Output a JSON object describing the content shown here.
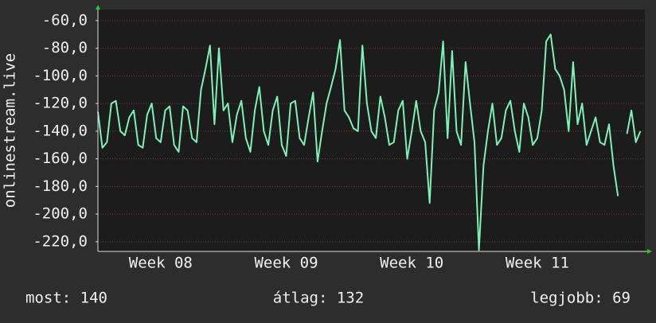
{
  "chart_data": {
    "type": "line",
    "y_label": "onlinestream.live",
    "xlim": [
      0,
      30.5
    ],
    "xticks": [
      {
        "value": 3.5,
        "label": "Week 08"
      },
      {
        "value": 10.5,
        "label": "Week 09"
      },
      {
        "value": 17.5,
        "label": "Week 10"
      },
      {
        "value": 24.5,
        "label": "Week 11"
      }
    ],
    "ylim": [
      -227,
      -52
    ],
    "yticks": [
      {
        "value": -60,
        "label": "-60,0"
      },
      {
        "value": -80,
        "label": "-80,0"
      },
      {
        "value": -100,
        "label": "-100,0"
      },
      {
        "value": -120,
        "label": "-120,0"
      },
      {
        "value": -140,
        "label": "-140,0"
      },
      {
        "value": -160,
        "label": "-160,0"
      },
      {
        "value": -180,
        "label": "-180,0"
      },
      {
        "value": -200,
        "label": "-200,0"
      },
      {
        "value": -220,
        "label": "-220,0"
      }
    ],
    "grid": true,
    "x": [
      0,
      0.25,
      0.5,
      0.75,
      1,
      1.25,
      1.5,
      1.75,
      2,
      2.25,
      2.5,
      2.75,
      3,
      3.25,
      3.5,
      3.75,
      4,
      4.25,
      4.5,
      4.75,
      5,
      5.25,
      5.5,
      5.75,
      6,
      6.25,
      6.5,
      6.75,
      7,
      7.25,
      7.5,
      7.75,
      8,
      8.25,
      8.5,
      8.75,
      9,
      9.25,
      9.5,
      9.75,
      10,
      10.25,
      10.5,
      10.75,
      11,
      11.25,
      11.5,
      11.75,
      12,
      12.25,
      12.5,
      12.75,
      13,
      13.25,
      13.5,
      13.75,
      14,
      14.25,
      14.5,
      14.75,
      15,
      15.25,
      15.5,
      15.75,
      16,
      16.25,
      16.5,
      16.75,
      17,
      17.25,
      17.5,
      17.75,
      18,
      18.25,
      18.5,
      18.75,
      19,
      19.25,
      19.5,
      19.75,
      20,
      20.25,
      20.5,
      20.75,
      21,
      21.25,
      21.5,
      21.75,
      22,
      22.25,
      22.5,
      22.75,
      23,
      23.25,
      23.5,
      23.75,
      24,
      24.25,
      24.5,
      24.75,
      25,
      25.25,
      25.5,
      25.75,
      26,
      26.25,
      26.5,
      26.75,
      27,
      27.25,
      27.5,
      27.75,
      28,
      28.25,
      28.5,
      28.75,
      29,
      29.25,
      29.5,
      29.75,
      30,
      30.25
    ],
    "series": [
      {
        "name": "onlinestream.live",
        "color": "#7df2b6",
        "values": [
          -126,
          -152,
          -148,
          -120,
          -118,
          -140,
          -143,
          -130,
          -125,
          -150,
          -152,
          -128,
          -120,
          -145,
          -148,
          -125,
          -122,
          -150,
          -155,
          -122,
          -125,
          -145,
          -148,
          -110,
          -95,
          -78,
          -135,
          -80,
          -125,
          -120,
          -148,
          -128,
          -118,
          -145,
          -155,
          -125,
          -108,
          -140,
          -150,
          -125,
          -115,
          -150,
          -158,
          -120,
          -118,
          -145,
          -150,
          -130,
          -112,
          -162,
          -140,
          -120,
          -108,
          -95,
          -74,
          -125,
          -130,
          -138,
          -140,
          -78,
          -120,
          -140,
          -145,
          -115,
          -130,
          -150,
          -148,
          -125,
          -118,
          -160,
          -140,
          -118,
          -140,
          -148,
          -192,
          -125,
          -112,
          -75,
          -145,
          -82,
          -140,
          -150,
          -90,
          -120,
          -148,
          -226,
          -165,
          -140,
          -120,
          -150,
          -145,
          -125,
          -118,
          -140,
          -155,
          -120,
          -130,
          -150,
          -145,
          -125,
          -75,
          -70,
          -95,
          -100,
          -110,
          -140,
          -90,
          -135,
          -120,
          -150,
          -140,
          -130,
          -148,
          -150,
          -135,
          -165,
          -187,
          null,
          -142,
          -125,
          -148,
          -140
        ]
      }
    ],
    "stats": [
      "most: 140",
      "átlag: 132",
      "legjobb: 69"
    ]
  }
}
